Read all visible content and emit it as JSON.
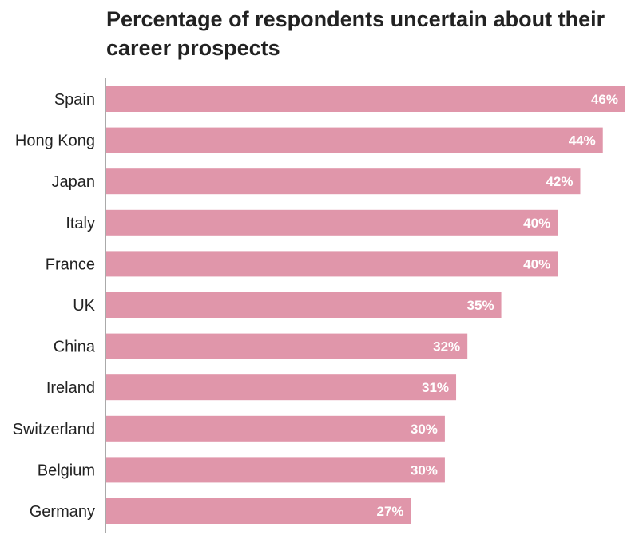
{
  "chart_data": {
    "type": "bar",
    "orientation": "horizontal",
    "title": "Percentage of respondents uncertain about their career prospects",
    "categories": [
      "Spain",
      "Hong Kong",
      "Japan",
      "Italy",
      "France",
      "UK",
      "China",
      "Ireland",
      "Switzerland",
      "Belgium",
      "Germany"
    ],
    "values": [
      46,
      44,
      42,
      40,
      40,
      35,
      32,
      31,
      30,
      30,
      27
    ],
    "value_labels": [
      "46%",
      "44%",
      "42%",
      "40%",
      "40%",
      "35%",
      "32%",
      "31%",
      "30%",
      "30%",
      "27%"
    ],
    "unit": "%",
    "xlim": [
      0,
      46
    ],
    "bar_color": "#e096aa",
    "grid": false,
    "legend": "none"
  }
}
